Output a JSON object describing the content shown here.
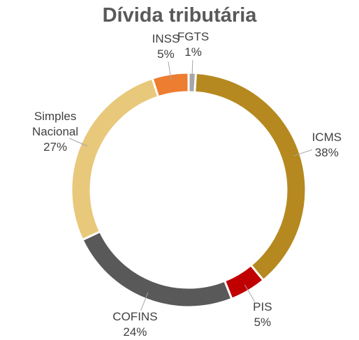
{
  "chart_data": {
    "type": "donut",
    "title": "Dívida tributária",
    "categories": [
      "FGTS",
      "ICMS",
      "PIS",
      "COFINS",
      "Simples Nacional",
      "INSS"
    ],
    "values": [
      1,
      38,
      5,
      24,
      27,
      5
    ],
    "value_labels": [
      "1%",
      "38%",
      "5%",
      "24%",
      "27%",
      "5%"
    ],
    "colors": [
      "#a6a6a6",
      "#b5891f",
      "#c00000",
      "#595959",
      "#e8c87a",
      "#ed7d31"
    ]
  }
}
